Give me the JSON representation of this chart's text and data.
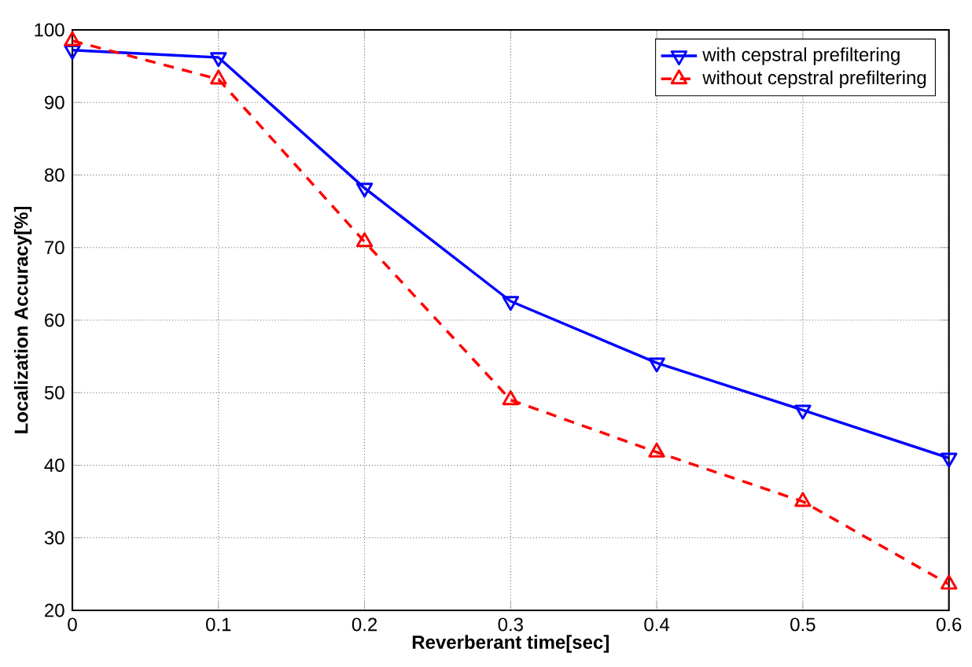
{
  "chart_data": {
    "type": "line",
    "xlabel": "Reverberant time[sec]",
    "ylabel": "Localization Accuracy[%]",
    "x": [
      0,
      0.1,
      0.2,
      0.3,
      0.4,
      0.5,
      0.6
    ],
    "series": [
      {
        "name": "with cepstral prefiltering",
        "color": "#0000ff",
        "marker": "triangle-down",
        "line_style": "solid",
        "values": [
          97.2,
          96.2,
          78.2,
          62.6,
          54.1,
          47.6,
          41
        ]
      },
      {
        "name": "without cepstral prefiltering",
        "color": "#ff0000",
        "marker": "triangle",
        "line_style": "dashed",
        "values": [
          98.5,
          93.2,
          70.8,
          49,
          41.8,
          35,
          23.6
        ]
      }
    ],
    "xlim": [
      0,
      0.6
    ],
    "ylim": [
      20,
      100
    ],
    "xticks": [
      0,
      0.1,
      0.2,
      0.3,
      0.4,
      0.5,
      0.6
    ],
    "yticks": [
      20,
      30,
      40,
      50,
      60,
      70,
      80,
      90,
      100
    ],
    "grid": true,
    "legend": "top right"
  }
}
